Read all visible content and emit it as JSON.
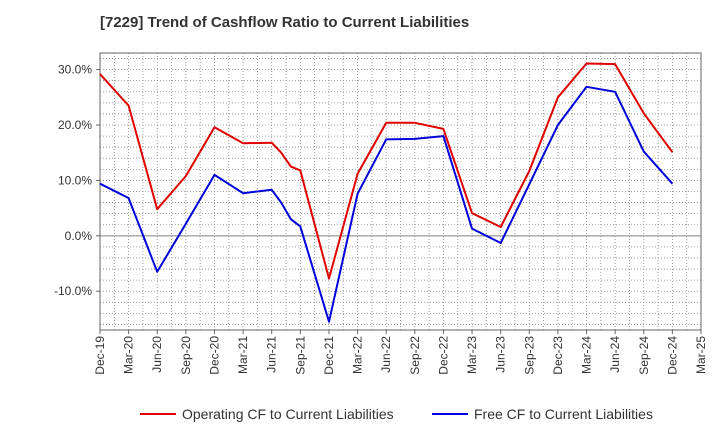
{
  "chart_data": {
    "type": "line",
    "title": "[7229]  Trend of Cashflow Ratio to Current Liabilities",
    "xlabel": "",
    "ylabel": "",
    "x_ticks": [
      "Dec-19",
      "Mar-20",
      "Jun-20",
      "Sep-20",
      "Dec-20",
      "Mar-21",
      "Jun-21",
      "Sep-21",
      "Dec-21",
      "Mar-22",
      "Jun-22",
      "Sep-22",
      "Dec-22",
      "Mar-23",
      "Jun-23",
      "Sep-23",
      "Dec-23",
      "Mar-24",
      "Jun-24",
      "Sep-24",
      "Dec-24",
      "Mar-25"
    ],
    "y_ticks": [
      "30.0%",
      "20.0%",
      "10.0%",
      "0.0%",
      "-10.0%"
    ],
    "y_tick_values": [
      30,
      20,
      10,
      0,
      -10
    ],
    "ylim": [
      -17,
      33
    ],
    "grid": true,
    "legend_position": "bottom",
    "series": [
      {
        "name": "Operating CF to Current Liabilities",
        "color": "#e00000",
        "x": [
          0,
          1,
          2,
          3,
          4,
          5,
          6,
          6.33,
          6.67,
          7,
          8,
          9,
          10,
          11,
          12,
          13,
          14,
          15,
          16,
          17,
          18,
          19,
          20
        ],
        "values": [
          29.2,
          23.5,
          4.8,
          10.8,
          19.6,
          16.7,
          16.8,
          15.0,
          12.5,
          11.8,
          -7.7,
          11.2,
          20.4,
          20.4,
          19.3,
          4.1,
          1.6,
          11.7,
          25.0,
          31.1,
          31.0,
          22.1,
          15.1
        ]
      },
      {
        "name": "Free CF to Current Liabilities",
        "color": "#0000dd",
        "x": [
          0,
          1,
          2,
          3,
          4,
          5,
          6,
          6.33,
          6.67,
          7,
          8,
          9,
          10,
          11,
          12,
          13,
          14,
          15,
          16,
          17,
          18,
          19,
          20
        ],
        "values": [
          9.4,
          6.8,
          -6.5,
          2.2,
          11.0,
          7.7,
          8.3,
          6.0,
          3.0,
          1.7,
          -15.5,
          7.6,
          17.4,
          17.5,
          18.0,
          1.3,
          -1.3,
          9.3,
          20.0,
          26.9,
          26.0,
          15.2,
          9.4
        ]
      }
    ]
  }
}
